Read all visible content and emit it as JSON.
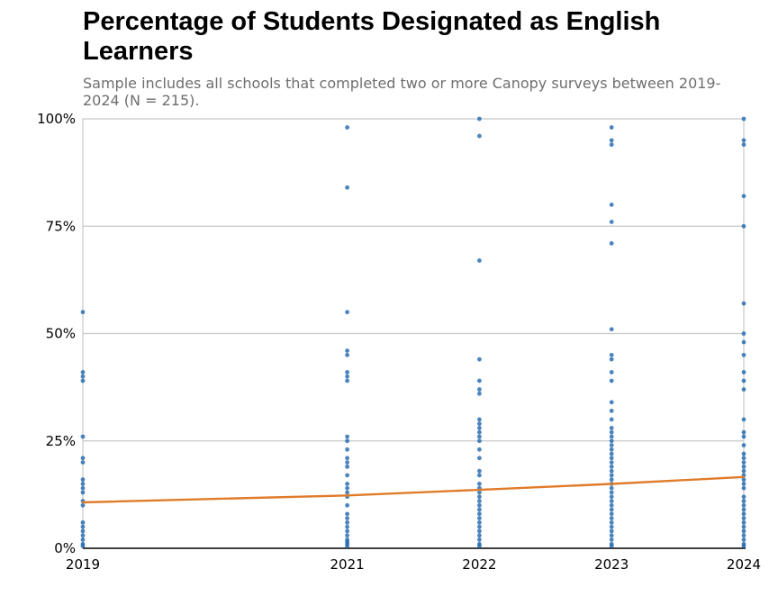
{
  "chart_data": {
    "type": "scatter",
    "title": "Percentage of Students Designated as English Learners",
    "subtitle": "Sample includes all schools that completed two or more Canopy surveys between 2019-2024 (N = 215).",
    "xlabel": "",
    "ylabel": "",
    "xlim": [
      2019,
      2024
    ],
    "ylim": [
      0,
      100
    ],
    "x_ticks": [
      2019,
      2021,
      2022,
      2023,
      2024
    ],
    "x_tick_labels": [
      "2019",
      "2021",
      "2022",
      "2023",
      "2024"
    ],
    "y_ticks": [
      0,
      25,
      50,
      75,
      100
    ],
    "y_tick_labels": [
      "0%",
      "25%",
      "50%",
      "75%",
      "100%"
    ],
    "grid": "horizontal",
    "legend": "none",
    "points": [
      {
        "x": 2019,
        "y": [
          0.5,
          1,
          2,
          3,
          4,
          5,
          6,
          10,
          11,
          13,
          14,
          15,
          16,
          20,
          21,
          26,
          39,
          40,
          41,
          55
        ]
      },
      {
        "x": 2021,
        "y": [
          0.5,
          1,
          1.5,
          2,
          3,
          4,
          5,
          6,
          7,
          8,
          10,
          12,
          13,
          14,
          15,
          17,
          19,
          20,
          21,
          23,
          25,
          26,
          39,
          40,
          41,
          45,
          46,
          55,
          84,
          98
        ]
      },
      {
        "x": 2022,
        "y": [
          0.5,
          1,
          2,
          3,
          4,
          5,
          6,
          7,
          8,
          9,
          10,
          11,
          12,
          13,
          14,
          15,
          17,
          18,
          21,
          23,
          25,
          26,
          27,
          28,
          29,
          30,
          36,
          37,
          39,
          44,
          67,
          96,
          100
        ]
      },
      {
        "x": 2023,
        "y": [
          0.5,
          1,
          2,
          3,
          4,
          5,
          6,
          7,
          8,
          9,
          10,
          11,
          12,
          13,
          14,
          15,
          16,
          17,
          18,
          19,
          20,
          21,
          22,
          23,
          24,
          25,
          26,
          27,
          28,
          30,
          32,
          34,
          39,
          41,
          44,
          45,
          51,
          71,
          76,
          80,
          94,
          95,
          98
        ]
      },
      {
        "x": 2024,
        "y": [
          0.5,
          1,
          2,
          3,
          4,
          5,
          6,
          7,
          8,
          9,
          10,
          11,
          12,
          14,
          15,
          16,
          17,
          18,
          19,
          20,
          21,
          22,
          24,
          26,
          27,
          30,
          37,
          39,
          41,
          45,
          48,
          50,
          57,
          75,
          82,
          94,
          95,
          100
        ]
      }
    ],
    "trend_line": {
      "x": [
        2019,
        2021,
        2022,
        2023,
        2024
      ],
      "y": [
        10.7,
        12.3,
        13.6,
        15.0,
        16.6
      ]
    },
    "colors": {
      "points": "#1f67ad",
      "trend": "#e07b2a",
      "grid": "#c8c8c8",
      "axis": "#000000",
      "frame": "#bdbdbd"
    }
  }
}
